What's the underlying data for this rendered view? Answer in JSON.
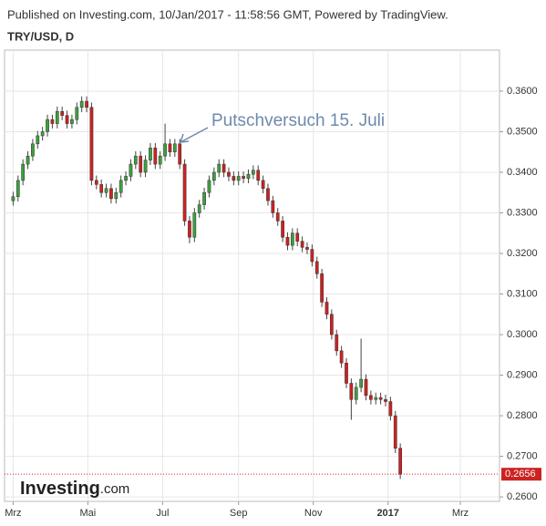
{
  "header": {
    "published": "Published on Investing.com, 10/Jan/2017 - 11:58:56 GMT, Powered by TradingView.",
    "symbol": "TRY/USD, D"
  },
  "logo": {
    "name": "Investing",
    "suffix": ".com"
  },
  "chart_data": {
    "type": "candlestick",
    "annotation": "Putschversuch 15. Juli",
    "up_color": "#3ca03c",
    "down_color": "#cc2222",
    "grid": true,
    "xlim": [
      -7,
      397
    ],
    "xticks": [
      {
        "value": 0,
        "label": "Mrz"
      },
      {
        "value": 61,
        "label": "Mai"
      },
      {
        "value": 122,
        "label": "Jul"
      },
      {
        "value": 184,
        "label": "Sep"
      },
      {
        "value": 245,
        "label": "Nov"
      },
      {
        "value": 306,
        "label": "2017"
      },
      {
        "value": 365,
        "label": "Mrz"
      }
    ],
    "ylim": [
      0.2589,
      0.3701
    ],
    "yticks": [
      {
        "value": 0.36,
        "label": "0.3600"
      },
      {
        "value": 0.35,
        "label": "0.3500"
      },
      {
        "value": 0.34,
        "label": "0.3400"
      },
      {
        "value": 0.33,
        "label": "0.3300"
      },
      {
        "value": 0.32,
        "label": "0.3200"
      },
      {
        "value": 0.31,
        "label": "0.3100"
      },
      {
        "value": 0.3,
        "label": "0.3000"
      },
      {
        "value": 0.29,
        "label": "0.2900"
      },
      {
        "value": 0.28,
        "label": "0.2800"
      },
      {
        "value": 0.27,
        "label": "0.2700"
      },
      {
        "value": 0.26,
        "label": "0.2600"
      }
    ],
    "last_price": {
      "value": 0.2656,
      "label": "0.2656"
    },
    "x": [
      0,
      4,
      8,
      12,
      16,
      20,
      24,
      28,
      32,
      36,
      40,
      44,
      48,
      52,
      56,
      60,
      64,
      68,
      72,
      76,
      80,
      84,
      88,
      92,
      96,
      100,
      104,
      108,
      112,
      116,
      120,
      124,
      128,
      132,
      136,
      140,
      144,
      148,
      152,
      156,
      160,
      164,
      168,
      172,
      176,
      180,
      184,
      188,
      192,
      196,
      200,
      204,
      208,
      212,
      216,
      220,
      224,
      228,
      232,
      236,
      240,
      244,
      248,
      252,
      256,
      260,
      264,
      268,
      272,
      276,
      280,
      284,
      288,
      292,
      296,
      300,
      304,
      308,
      312,
      316
    ],
    "open": [
      0.333,
      0.334,
      0.338,
      0.342,
      0.344,
      0.347,
      0.349,
      0.35,
      0.353,
      0.352,
      0.355,
      0.354,
      0.352,
      0.353,
      0.356,
      0.3575,
      0.356,
      0.338,
      0.337,
      0.335,
      0.336,
      0.3335,
      0.335,
      0.338,
      0.339,
      0.342,
      0.344,
      0.34,
      0.343,
      0.346,
      0.342,
      0.344,
      0.347,
      0.345,
      0.347,
      0.342,
      0.328,
      0.324,
      0.33,
      0.332,
      0.335,
      0.338,
      0.34,
      0.342,
      0.34,
      0.339,
      0.338,
      0.339,
      0.3385,
      0.3395,
      0.3405,
      0.338,
      0.336,
      0.333,
      0.33,
      0.328,
      0.324,
      0.322,
      0.325,
      0.323,
      0.3215,
      0.321,
      0.318,
      0.315,
      0.308,
      0.305,
      0.3,
      0.296,
      0.293,
      0.288,
      0.284,
      0.287,
      0.289,
      0.285,
      0.284,
      0.2845,
      0.284,
      0.2835,
      0.28,
      0.272
    ],
    "high": [
      0.3352,
      0.3392,
      0.3432,
      0.3452,
      0.3482,
      0.3502,
      0.3512,
      0.3542,
      0.3542,
      0.3562,
      0.3562,
      0.3552,
      0.3542,
      0.3572,
      0.3587,
      0.3587,
      0.3572,
      0.3392,
      0.3382,
      0.3372,
      0.3372,
      0.3362,
      0.3392,
      0.3402,
      0.3432,
      0.3452,
      0.3452,
      0.3442,
      0.3472,
      0.3472,
      0.3452,
      0.352,
      0.3482,
      0.3482,
      0.3482,
      0.3432,
      0.3292,
      0.3312,
      0.3332,
      0.3362,
      0.3392,
      0.3412,
      0.3432,
      0.3432,
      0.3412,
      0.3402,
      0.3402,
      0.3402,
      0.3407,
      0.3417,
      0.3417,
      0.3392,
      0.3372,
      0.3342,
      0.3312,
      0.3292,
      0.3252,
      0.3262,
      0.3262,
      0.3242,
      0.3227,
      0.3222,
      0.3192,
      0.3162,
      0.3092,
      0.3062,
      0.3012,
      0.2972,
      0.2942,
      0.2892,
      0.2882,
      0.299,
      0.2902,
      0.2862,
      0.2857,
      0.2857,
      0.2852,
      0.2847,
      0.2812,
      0.2732
    ],
    "low": [
      0.3318,
      0.3328,
      0.3368,
      0.3408,
      0.3428,
      0.3458,
      0.3478,
      0.3488,
      0.3508,
      0.3508,
      0.3528,
      0.3508,
      0.3508,
      0.3518,
      0.3548,
      0.3548,
      0.3368,
      0.3358,
      0.3338,
      0.3338,
      0.3323,
      0.3323,
      0.3338,
      0.3368,
      0.3378,
      0.3408,
      0.3388,
      0.3388,
      0.3418,
      0.3408,
      0.3408,
      0.3428,
      0.3438,
      0.3438,
      0.3408,
      0.3268,
      0.3225,
      0.3228,
      0.3288,
      0.3308,
      0.3338,
      0.3368,
      0.3388,
      0.3388,
      0.3378,
      0.3368,
      0.3368,
      0.3373,
      0.3373,
      0.3383,
      0.3368,
      0.3348,
      0.3318,
      0.3288,
      0.3268,
      0.3228,
      0.3208,
      0.3208,
      0.3218,
      0.3203,
      0.3198,
      0.3168,
      0.3138,
      0.3068,
      0.3038,
      0.2988,
      0.2948,
      0.2918,
      0.2868,
      0.279,
      0.2828,
      0.2858,
      0.2838,
      0.2828,
      0.2828,
      0.2828,
      0.2823,
      0.2788,
      0.2708,
      0.2644
    ],
    "close": [
      0.334,
      0.338,
      0.342,
      0.344,
      0.347,
      0.349,
      0.35,
      0.353,
      0.352,
      0.355,
      0.354,
      0.352,
      0.353,
      0.356,
      0.3575,
      0.356,
      0.338,
      0.337,
      0.335,
      0.336,
      0.3335,
      0.335,
      0.338,
      0.339,
      0.342,
      0.344,
      0.34,
      0.343,
      0.346,
      0.342,
      0.344,
      0.347,
      0.345,
      0.347,
      0.342,
      0.328,
      0.324,
      0.33,
      0.332,
      0.335,
      0.338,
      0.34,
      0.342,
      0.34,
      0.339,
      0.338,
      0.339,
      0.3385,
      0.3395,
      0.3405,
      0.338,
      0.336,
      0.333,
      0.33,
      0.328,
      0.324,
      0.322,
      0.325,
      0.323,
      0.3215,
      0.321,
      0.318,
      0.315,
      0.308,
      0.305,
      0.3,
      0.296,
      0.293,
      0.288,
      0.284,
      0.287,
      0.289,
      0.285,
      0.284,
      0.2845,
      0.284,
      0.2835,
      0.28,
      0.272,
      0.2656
    ]
  }
}
